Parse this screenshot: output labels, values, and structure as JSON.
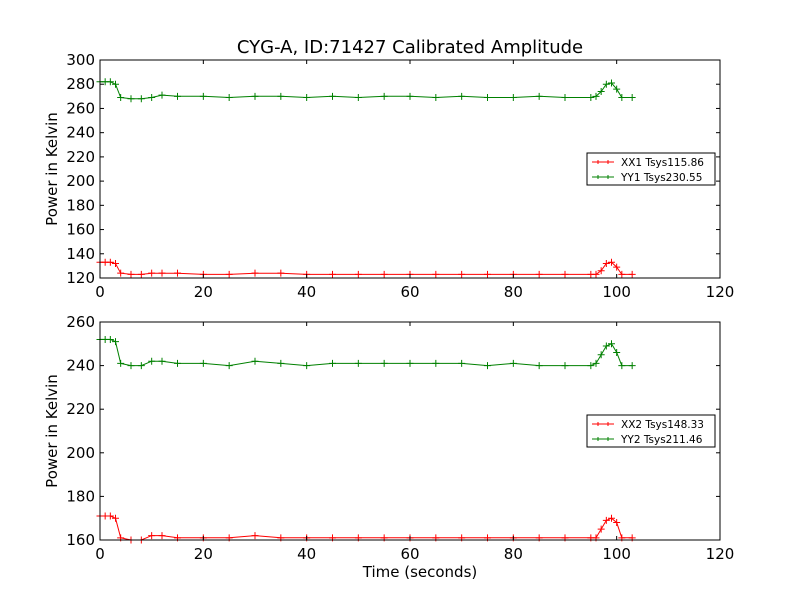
{
  "figure_title": "CYG-A, ID:71427 Calibrated Amplitude",
  "chart_data": [
    {
      "type": "line",
      "title": "CYG-A, ID:71427 Calibrated Amplitude",
      "xlabel": "",
      "ylabel": "Power in Kelvin",
      "xlim": [
        0,
        120
      ],
      "ylim": [
        120,
        300
      ],
      "xticks": [
        "0",
        "20",
        "40",
        "60",
        "80",
        "100",
        "120"
      ],
      "yticks": [
        "120",
        "140",
        "160",
        "180",
        "200",
        "220",
        "240",
        "260",
        "280",
        "300"
      ],
      "legend_position": "center-right",
      "marker": "+",
      "x": [
        0,
        1,
        2,
        3,
        4,
        6,
        8,
        10,
        12,
        15,
        20,
        25,
        30,
        35,
        40,
        45,
        50,
        55,
        60,
        65,
        70,
        75,
        80,
        85,
        90,
        95,
        96,
        97,
        98,
        99,
        100,
        101,
        103
      ],
      "series": [
        {
          "name": "XX1 Tsys115.86",
          "color": "#ff0000",
          "values": [
            133,
            133,
            133,
            132,
            124,
            123,
            123,
            124,
            124,
            124,
            123,
            123,
            124,
            124,
            123,
            123,
            123,
            123,
            123,
            123,
            123,
            123,
            123,
            123,
            123,
            123,
            123,
            126,
            132,
            133,
            129,
            123,
            123
          ]
        },
        {
          "name": "YY1 Tsys230.55",
          "color": "#008000",
          "values": [
            282,
            282,
            282,
            280,
            269,
            268,
            268,
            269,
            271,
            270,
            270,
            269,
            270,
            270,
            269,
            270,
            269,
            270,
            270,
            269,
            270,
            269,
            269,
            270,
            269,
            269,
            270,
            274,
            280,
            281,
            276,
            269,
            269
          ]
        }
      ]
    },
    {
      "type": "line",
      "title": "",
      "xlabel": "Time (seconds)",
      "ylabel": "Power in Kelvin",
      "xlim": [
        0,
        120
      ],
      "ylim": [
        160,
        260
      ],
      "xticks": [
        "0",
        "20",
        "40",
        "60",
        "80",
        "100",
        "120"
      ],
      "yticks": [
        "160",
        "180",
        "200",
        "220",
        "240",
        "260"
      ],
      "legend_position": "center-right",
      "marker": "+",
      "x": [
        0,
        1,
        2,
        3,
        4,
        6,
        8,
        10,
        12,
        15,
        20,
        25,
        30,
        35,
        40,
        45,
        50,
        55,
        60,
        65,
        70,
        75,
        80,
        85,
        90,
        95,
        96,
        97,
        98,
        99,
        100,
        101,
        103
      ],
      "series": [
        {
          "name": "XX2 Tsys148.33",
          "color": "#ff0000",
          "values": [
            171,
            171,
            171,
            170,
            161,
            160,
            160,
            162,
            162,
            161,
            161,
            161,
            162,
            161,
            161,
            161,
            161,
            161,
            161,
            161,
            161,
            161,
            161,
            161,
            161,
            161,
            161,
            165,
            169,
            170,
            168,
            161,
            161
          ]
        },
        {
          "name": "YY2 Tsys211.46",
          "color": "#008000",
          "values": [
            252,
            252,
            252,
            251,
            241,
            240,
            240,
            242,
            242,
            241,
            241,
            240,
            242,
            241,
            240,
            241,
            241,
            241,
            241,
            241,
            241,
            240,
            241,
            240,
            240,
            240,
            241,
            245,
            249,
            250,
            246,
            240,
            240
          ]
        }
      ]
    }
  ]
}
